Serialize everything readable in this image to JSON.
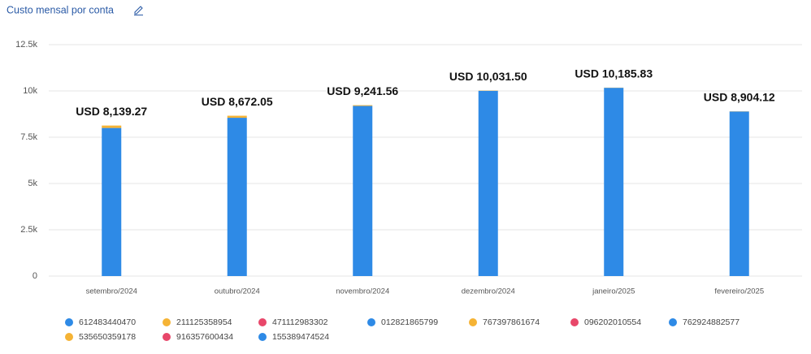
{
  "chart_data": {
    "type": "stacked-bar",
    "title": "Custo mensal por conta",
    "categories": [
      "setembro/2024",
      "outubro/2024",
      "novembro/2024",
      "dezembro/2024",
      "janeiro/2025",
      "fevereiro/2025"
    ],
    "series": [
      {
        "name": "612483440470",
        "color": "#2e8ae6",
        "values": [
          8000,
          8550,
          9190,
          10010,
          10170,
          8890
        ]
      },
      {
        "name": "211125358954",
        "color": "#f5b335",
        "values": [
          130,
          110,
          40,
          15,
          10,
          10
        ]
      },
      {
        "name": "471112983302",
        "color": "#e8476a",
        "values": [
          0,
          0,
          0,
          0,
          0,
          0
        ]
      },
      {
        "name": "012821865799",
        "color": "#2e8ae6",
        "values": [
          0,
          0,
          0,
          0,
          0,
          0
        ]
      },
      {
        "name": "767397861674",
        "color": "#f5b335",
        "values": [
          0,
          0,
          0,
          0,
          0,
          0
        ]
      },
      {
        "name": "096202010554",
        "color": "#e8476a",
        "values": [
          0,
          0,
          0,
          0,
          0,
          0
        ]
      },
      {
        "name": "762924882577",
        "color": "#2e8ae6",
        "values": [
          0,
          0,
          0,
          0,
          0,
          0
        ]
      },
      {
        "name": "535650359178",
        "color": "#f5b335",
        "values": [
          0,
          0,
          0,
          0,
          0,
          0
        ]
      },
      {
        "name": "916357600434",
        "color": "#e8476a",
        "values": [
          0,
          0,
          0,
          0,
          0,
          0
        ]
      },
      {
        "name": "155389474524",
        "color": "#2e8ae6",
        "values": [
          0,
          0,
          0,
          0,
          0,
          0
        ]
      }
    ],
    "total_values": [
      8139.27,
      8672.05,
      9241.56,
      10031.5,
      10185.83,
      8904.12
    ],
    "total_labels": [
      "USD 8,139.27",
      "USD 8,672.05",
      "USD 9,241.56",
      "USD 10,031.50",
      "USD 10,185.83",
      "USD 8,904.12"
    ],
    "ylim": [
      0,
      12500
    ],
    "yticks": [
      0,
      {
        "value": 2500,
        "label": "2.5k"
      },
      {
        "value": 5000,
        "label": "5k"
      },
      {
        "value": 7500,
        "label": "7.5k"
      },
      {
        "value": 10000,
        "label": "10k"
      },
      {
        "value": 12500,
        "label": "12.5k"
      }
    ],
    "grid": true
  }
}
